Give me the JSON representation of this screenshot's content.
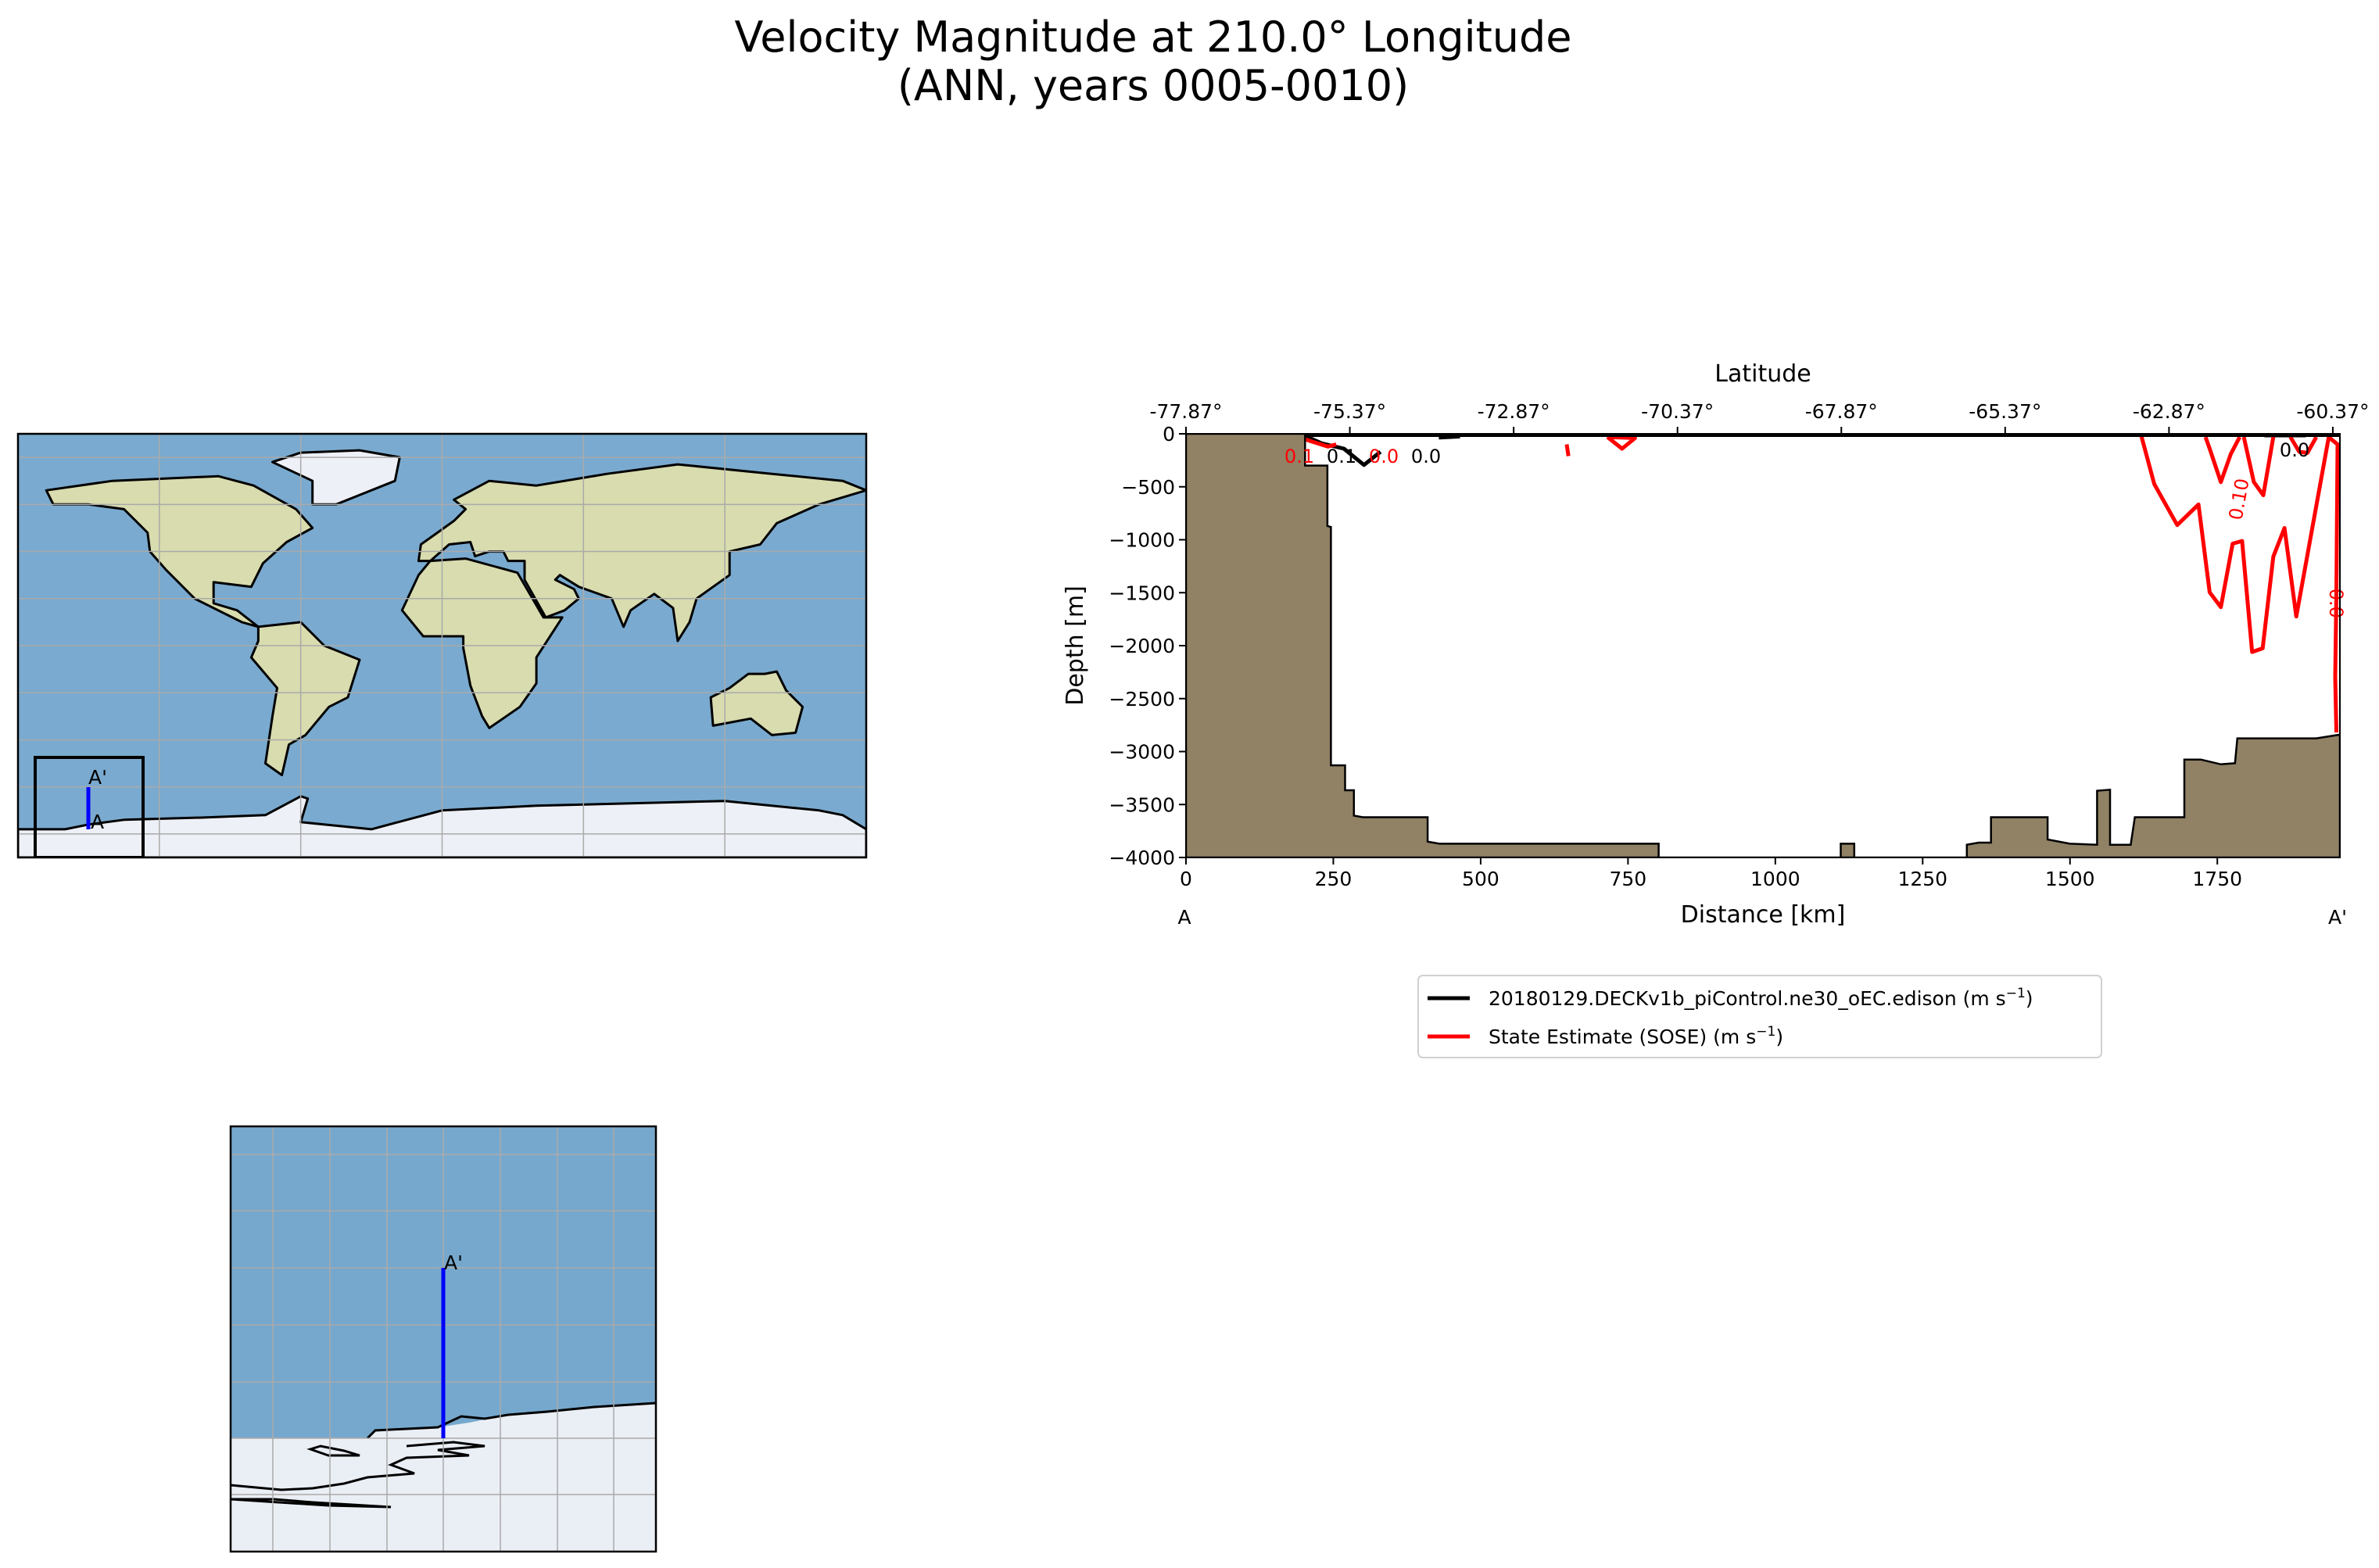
{
  "title": {
    "line1": "Velocity Magnitude at 210.0° Longitude",
    "line2": "(ANN, years 0005-0010)"
  },
  "world_map": {
    "start_label": "A",
    "end_label": "A'",
    "section_color": "#0000ff"
  },
  "inset_map": {
    "end_label": "A'",
    "section_color": "#0000ff"
  },
  "chart_data": {
    "type": "line",
    "title": "",
    "xlabel": "Distance [km]",
    "ylabel": "Depth [m]",
    "top_xlabel": "Latitude",
    "xlim": [
      0,
      1958
    ],
    "ylim": [
      -4000,
      0
    ],
    "xticks": [
      0,
      250,
      500,
      750,
      1000,
      1250,
      1500,
      1750
    ],
    "xtick_labels": [
      "0",
      "250",
      "500",
      "750",
      "1000",
      "1250",
      "1500",
      "1750"
    ],
    "yticks": [
      0,
      -500,
      -1000,
      -1500,
      -2000,
      -2500,
      -3000,
      -3500,
      -4000
    ],
    "ytick_labels": [
      "0",
      "−500",
      "−1000",
      "−1500",
      "−2000",
      "−2500",
      "−3000",
      "−3500",
      "−4000"
    ],
    "top_xticks": [
      0,
      278,
      556,
      834,
      1112,
      1390,
      1668,
      1946
    ],
    "top_xtick_labels": [
      "-77.87°",
      "-75.37°",
      "-72.87°",
      "-70.37°",
      "-67.87°",
      "-65.37°",
      "-62.87°",
      "-60.37°"
    ],
    "start_label": "A",
    "end_label": "A'",
    "bathymetry_color": "#918165",
    "bathymetry": [
      [
        0,
        0
      ],
      [
        202,
        0
      ],
      [
        202,
        -300
      ],
      [
        240,
        -300
      ],
      [
        240,
        -870
      ],
      [
        246,
        -880
      ],
      [
        246,
        -3130
      ],
      [
        270,
        -3130
      ],
      [
        270,
        -3365
      ],
      [
        285,
        -3365
      ],
      [
        285,
        -3605
      ],
      [
        300,
        -3620
      ],
      [
        410,
        -3620
      ],
      [
        410,
        -3850
      ],
      [
        430,
        -3870
      ],
      [
        802,
        -3870
      ],
      [
        802,
        -4000
      ],
      [
        1111,
        -4000
      ],
      [
        1111,
        -3870
      ],
      [
        1134,
        -3870
      ],
      [
        1134,
        -4000
      ],
      [
        1325,
        -4000
      ],
      [
        1325,
        -3880
      ],
      [
        1345,
        -3860
      ],
      [
        1366,
        -3860
      ],
      [
        1366,
        -3620
      ],
      [
        1462,
        -3620
      ],
      [
        1462,
        -3830
      ],
      [
        1500,
        -3870
      ],
      [
        1546,
        -3880
      ],
      [
        1546,
        -3370
      ],
      [
        1568,
        -3360
      ],
      [
        1568,
        -3880
      ],
      [
        1603,
        -3880
      ],
      [
        1610,
        -3620
      ],
      [
        1694,
        -3620
      ],
      [
        1694,
        -3075
      ],
      [
        1722,
        -3075
      ],
      [
        1756,
        -3120
      ],
      [
        1780,
        -3110
      ],
      [
        1784,
        -2875
      ],
      [
        1918,
        -2875
      ],
      [
        1958,
        -2840
      ],
      [
        1958,
        -4000
      ],
      [
        0,
        -4000
      ]
    ],
    "series": [
      {
        "name": "20180129.DECKv1b_piControl.ne30_oEC.edison (m s⁻¹)",
        "legend_main": "20180129.DECKv1b_piControl.ne30_oEC.edison (m s",
        "color": "#000000",
        "contours": [
          [
            [
              202,
              -20
            ],
            [
              230,
              -90
            ],
            [
              268,
              -140
            ],
            [
              302,
              -294
            ],
            [
              330,
              -170
            ]
          ],
          [
            [
              429,
              -35
            ],
            [
              465,
              -25
            ]
          ],
          [
            [
              1830,
              -15
            ],
            [
              1900,
              -15
            ]
          ]
        ],
        "labels": [
          {
            "text": "0.1",
            "x": 262,
            "y": -45
          },
          {
            "text": "0.0",
            "x": 360,
            "y": -60
          },
          {
            "text": "0.0",
            "x": 1880,
            "y": -20
          }
        ]
      },
      {
        "name": "State Estimate (SOSE) (m s⁻¹)",
        "legend_main": "State Estimate (SOSE) (m s",
        "color": "#ff0000",
        "contours": [
          [
            [
              186,
              -20
            ],
            [
              212,
              -70
            ],
            [
              241,
              -120
            ],
            [
              255,
              -100
            ]
          ],
          [
            [
              715,
              -30
            ],
            [
              740,
              -140
            ],
            [
              762,
              -40
            ],
            [
              715,
              -30
            ]
          ],
          [
            [
              646,
              -100
            ],
            [
              649,
              -210
            ]
          ],
          [
            [
              1448,
              -10
            ],
            [
              1629,
              -10
            ]
          ],
          [
            [
              1672,
              -10
            ],
            [
              1958,
              -10
            ]
          ],
          [
            [
              1621,
              -20
            ],
            [
              1643,
              -473
            ],
            [
              1657,
              -614
            ],
            [
              1682,
              -861
            ],
            [
              1718,
              -667
            ],
            [
              1737,
              -1496
            ],
            [
              1756,
              -1637
            ],
            [
              1776,
              -1037
            ],
            [
              1792,
              -1012
            ],
            [
              1809,
              -2060
            ],
            [
              1827,
              -2025
            ],
            [
              1845,
              -1160
            ],
            [
              1864,
              -889
            ],
            [
              1884,
              -1725
            ],
            [
              1939,
              -32
            ],
            [
              1954,
              -100
            ],
            [
              1952,
              -1500
            ],
            [
              1950,
              -2300
            ],
            [
              1952,
              -2820
            ]
          ],
          [
            [
              1730,
              -30
            ],
            [
              1737,
              -140
            ],
            [
              1756,
              -455
            ],
            [
              1773,
              -190
            ],
            [
              1788,
              -30
            ]
          ],
          [
            [
              1795,
              -30
            ],
            [
              1812,
              -455
            ],
            [
              1828,
              -580
            ],
            [
              1845,
              -30
            ]
          ],
          [
            [
              1874,
              -30
            ],
            [
              1889,
              -170
            ],
            [
              1903,
              -180
            ],
            [
              1918,
              -30
            ]
          ]
        ],
        "labels": [
          {
            "text": "0.1",
            "x": 225,
            "y": -60
          },
          {
            "text": "0.0",
            "x": 300,
            "y": -100
          },
          {
            "text": "0.10",
            "x": 1840,
            "y": -200
          },
          {
            "text": "0.0",
            "x": 1954,
            "y": -1600
          }
        ]
      }
    ],
    "legend": {
      "placement": "below",
      "unit_superscript": "−1",
      "unit_close": ")"
    }
  }
}
